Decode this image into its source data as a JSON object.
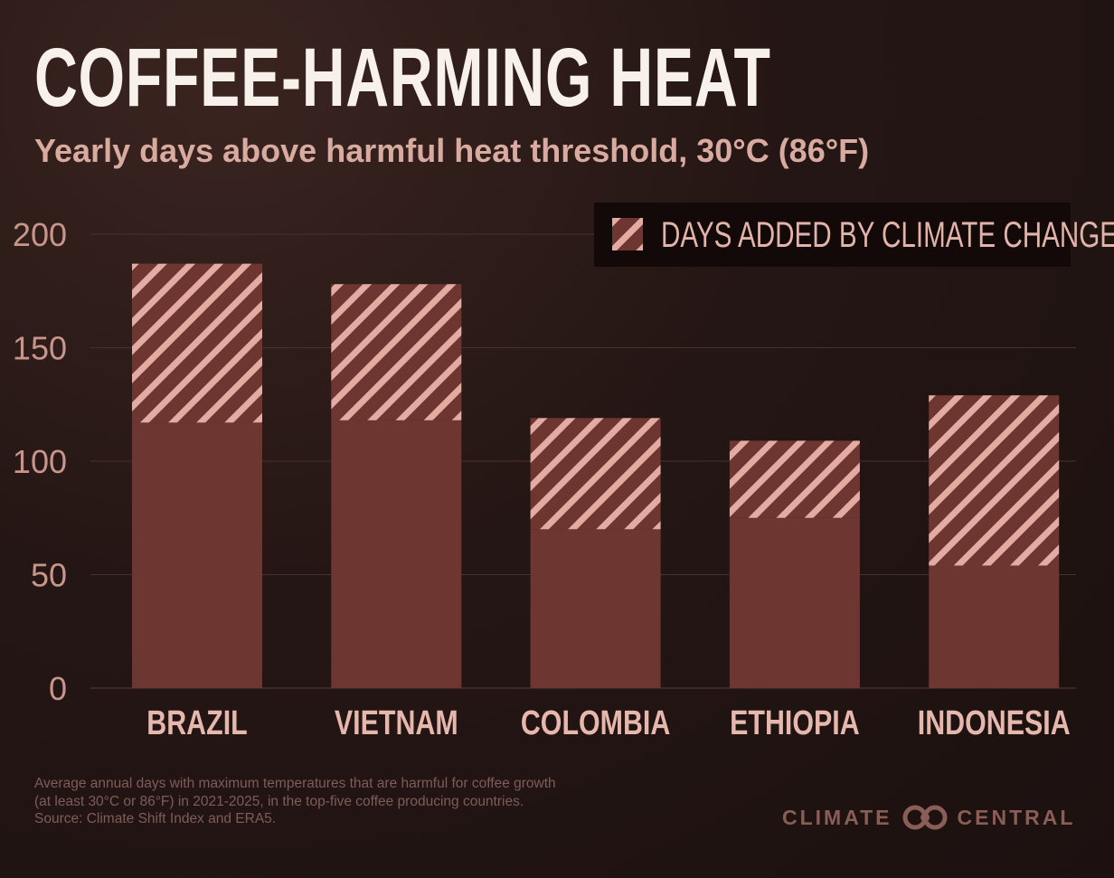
{
  "title": "COFFEE-HARMING HEAT",
  "subtitle": "Yearly days above harmful heat threshold, 30°C (86°F)",
  "legend": {
    "label": "DAYS ADDED BY CLIMATE CHANGE",
    "placement": "top-right"
  },
  "footnote": [
    "Average annual days with maximum temperatures that are harmful for coffee growth",
    "(at least 30°C or 86°F) in 2021-2025, in the top-five coffee producing countries.",
    "Source: Climate Shift Index and ERA5."
  ],
  "logo": {
    "left": "CLIMATE",
    "right": "CENTRAL"
  },
  "colors": {
    "base": "#6e3631",
    "stripe": "#e3aba1",
    "background": "#231615"
  },
  "chart_data": {
    "type": "bar",
    "stacked": true,
    "categories": [
      "BRAZIL",
      "VIETNAM",
      "COLOMBIA",
      "ETHIOPIA",
      "INDONESIA"
    ],
    "series": [
      {
        "values": [
          117,
          118,
          70,
          75,
          54
        ]
      },
      {
        "name": "DAYS ADDED BY CLIMATE CHANGE",
        "values": [
          70,
          60,
          49,
          34,
          75
        ]
      }
    ],
    "totals": [
      187,
      178,
      119,
      109,
      129
    ],
    "yticks": [
      0,
      50,
      100,
      150,
      200
    ],
    "ylim": [
      0,
      200
    ],
    "grid": true
  }
}
